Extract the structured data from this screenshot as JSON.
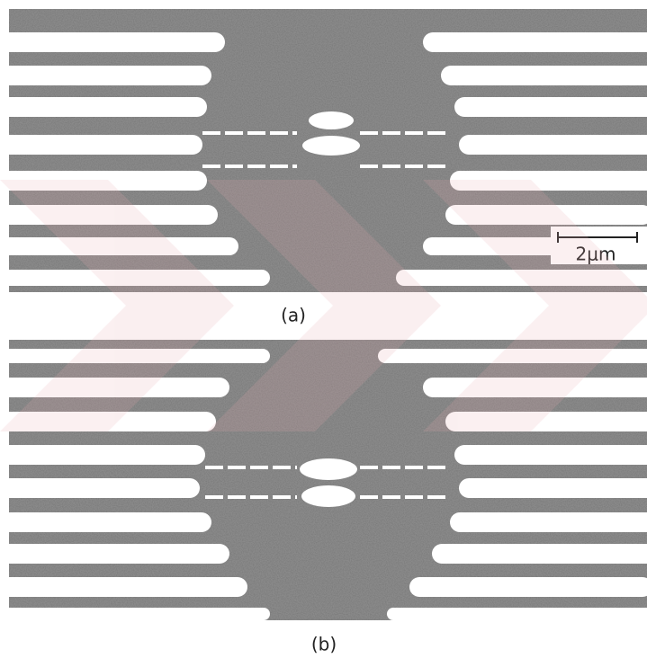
{
  "panels": [
    {
      "label": "(a)"
    },
    {
      "label": "(b)"
    }
  ],
  "scale_bar": {
    "label": "2μm"
  }
}
